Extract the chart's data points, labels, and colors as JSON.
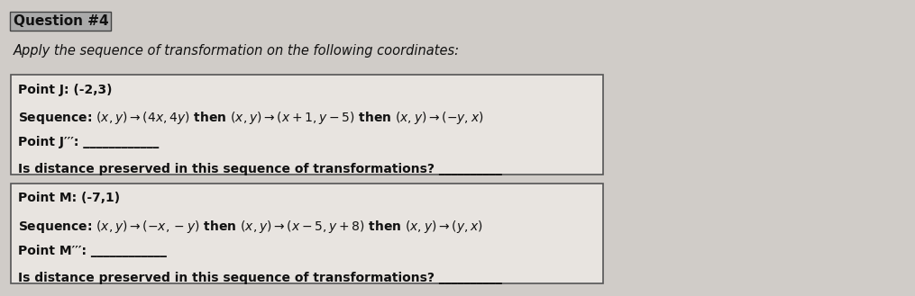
{
  "title": "Question #4",
  "subtitle": "Apply the sequence of transformation on the following coordinates:",
  "box1": {
    "point_label": "Point J: (-2,3)",
    "sequence": "(x, y) → (4x, 4y) then (x, y) → (x + 1, y − 5) then (x, y) → (−y, x)",
    "point_result_label": "Point J’’’:",
    "distance_label": "Is distance preserved in this sequence of transformations?"
  },
  "box2": {
    "point_label": "Point M: (-7,1)",
    "sequence": "(x, y) → (−x, −y) then (x, y) → (x − 5, y + 8) then (x, y) → (y, x)",
    "point_result_label": "Point M’’’:",
    "distance_label": "Is distance preserved in this sequence of transformations?"
  },
  "bg_color": "#d0ccc8",
  "box_bg_color": "#e8e4e0",
  "title_bg_color": "#3a3a3a",
  "title_fg_color": "#ffffff",
  "text_color": "#111111",
  "font_size_title": 11,
  "font_size_subtitle": 10.5,
  "font_size_body": 10
}
